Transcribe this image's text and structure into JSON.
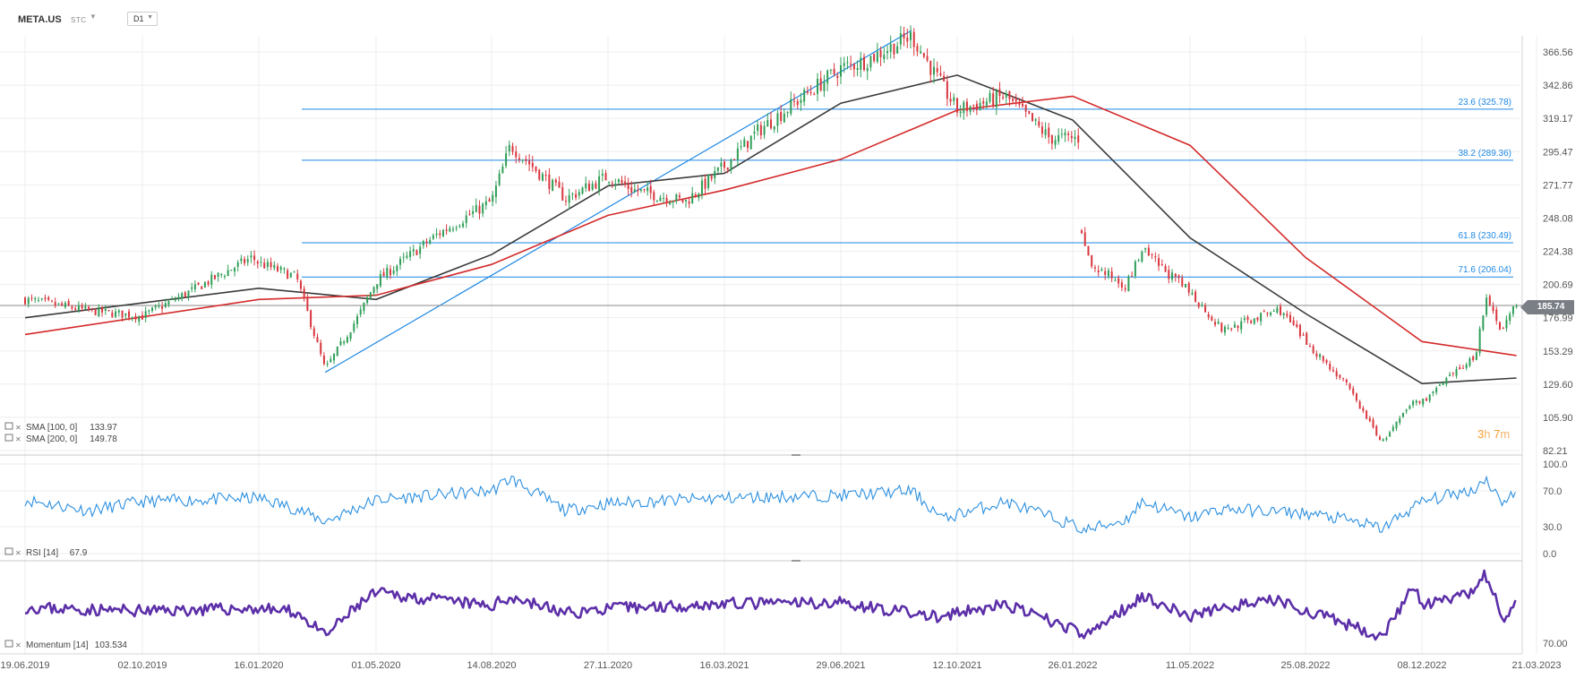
{
  "header": {
    "symbol": "META.US",
    "market": "STC",
    "timeframe": "D1"
  },
  "last_price_badge": "185.74",
  "countdown": {
    "hours": "3",
    "hours_unit": "h",
    "minutes": "7",
    "minutes_unit": "m"
  },
  "colors": {
    "bull": "#2e9e57",
    "bear": "#d9363e",
    "sma100": "#3a3a3a",
    "sma200": "#d42a2a",
    "fib": "#1e88e5",
    "rsi": "#2b8fe0",
    "momentum": "#5c2fa8",
    "price_line": "#7a7f86"
  },
  "chart_data": [
    {
      "type": "candlestick",
      "symbol": "META.US",
      "timeframe": "D1",
      "x_tick_labels": [
        "19.06.2019",
        "02.10.2019",
        "16.01.2020",
        "01.05.2020",
        "14.08.2020",
        "27.11.2020",
        "16.03.2021",
        "29.06.2021",
        "12.10.2021",
        "26.01.2022",
        "11.05.2022",
        "25.08.2022",
        "08.12.2022",
        "21.03.2023"
      ],
      "y_tick_labels": [
        "366.56",
        "342.86",
        "319.17",
        "295.47",
        "271.77",
        "248.08",
        "224.38",
        "200.69",
        "176.99",
        "153.29",
        "129.60",
        "105.90",
        "82.21"
      ],
      "ylim": [
        82.21,
        366.56
      ],
      "last_price": 185.74,
      "price_path": [
        [
          "19.06.2019",
          190
        ],
        [
          "15.08.2019",
          182
        ],
        [
          "02.10.2019",
          178
        ],
        [
          "15.11.2019",
          196
        ],
        [
          "10.01.2020",
          220
        ],
        [
          "16.01.2020",
          216
        ],
        [
          "19.02.2020",
          206
        ],
        [
          "16.03.2020",
          140
        ],
        [
          "15.04.2020",
          178
        ],
        [
          "01.05.2020",
          203
        ],
        [
          "25.06.2020",
          236
        ],
        [
          "14.08.2020",
          260
        ],
        [
          "31.08.2020",
          300
        ],
        [
          "20.10.2020",
          262
        ],
        [
          "27.11.2020",
          278
        ],
        [
          "21.12.2020",
          268
        ],
        [
          "08.02.2021",
          260
        ],
        [
          "16.03.2021",
          285
        ],
        [
          "15.04.2021",
          310
        ],
        [
          "29.06.2021",
          355
        ],
        [
          "20.07.2021",
          360
        ],
        [
          "01.09.2021",
          378
        ],
        [
          "30.09.2021",
          340
        ],
        [
          "12.10.2021",
          325
        ],
        [
          "25.11.2021",
          335
        ],
        [
          "05.01.2022",
          305
        ],
        [
          "31.01.2022",
          305
        ],
        [
          "03.02.2022",
          240
        ],
        [
          "10.02.2022",
          215
        ],
        [
          "15.03.2022",
          200
        ],
        [
          "29.03.2022",
          225
        ],
        [
          "11.05.2022",
          195
        ],
        [
          "10.06.2022",
          168
        ],
        [
          "01.08.2022",
          183
        ],
        [
          "25.08.2022",
          160
        ],
        [
          "30.09.2022",
          130
        ],
        [
          "02.11.2022",
          88
        ],
        [
          "01.12.2022",
          118
        ],
        [
          "08.12.2022",
          117
        ],
        [
          "25.01.2023",
          150
        ],
        [
          "03.02.2023",
          190
        ],
        [
          "17.02.2023",
          170
        ],
        [
          "22.02.2023",
          175
        ],
        [
          "03.03.2023",
          185.74
        ]
      ],
      "sma": [
        {
          "name": "SMA [100, 0]",
          "value": 133.97,
          "color": "#3a3a3a",
          "path": [
            [
              "19.06.2019",
              177
            ],
            [
              "16.01.2020",
              198
            ],
            [
              "01.05.2020",
              190
            ],
            [
              "14.08.2020",
              222
            ],
            [
              "27.11.2020",
              271
            ],
            [
              "16.03.2021",
              280
            ],
            [
              "29.06.2021",
              330
            ],
            [
              "12.10.2021",
              350
            ],
            [
              "26.01.2022",
              318
            ],
            [
              "11.05.2022",
              234
            ],
            [
              "25.08.2022",
              180
            ],
            [
              "08.12.2022",
              130
            ],
            [
              "03.03.2023",
              134
            ]
          ]
        },
        {
          "name": "SMA [200, 0]",
          "value": 149.78,
          "color": "#d42a2a",
          "path": [
            [
              "19.06.2019",
              165
            ],
            [
              "16.01.2020",
              190
            ],
            [
              "01.05.2020",
              193
            ],
            [
              "14.08.2020",
              215
            ],
            [
              "27.11.2020",
              250
            ],
            [
              "16.03.2021",
              268
            ],
            [
              "29.06.2021",
              290
            ],
            [
              "12.10.2021",
              325
            ],
            [
              "26.01.2022",
              335
            ],
            [
              "11.05.2022",
              300
            ],
            [
              "25.08.2022",
              220
            ],
            [
              "08.12.2022",
              160
            ],
            [
              "03.03.2023",
              150
            ]
          ]
        }
      ],
      "fibonacci": [
        {
          "label": "23.6 (325.78)",
          "level": 325.78
        },
        {
          "label": "38.2 (289.36)",
          "level": 289.36
        },
        {
          "label": "61.8 (230.49)",
          "level": 230.49
        },
        {
          "label": "71.6 (206.04)",
          "level": 206.04
        }
      ],
      "trendline": {
        "from": [
          "16.03.2020",
          138
        ],
        "to": [
          "01.09.2021",
          382
        ]
      }
    },
    {
      "type": "line",
      "name": "RSI [14]",
      "value": 67.9,
      "y_tick_labels": [
        "100.0",
        "70.0",
        "30.0",
        "0.0"
      ],
      "ylim": [
        0,
        100
      ],
      "path": [
        [
          "19.06.2019",
          60
        ],
        [
          "15.08.2019",
          48
        ],
        [
          "02.10.2019",
          58
        ],
        [
          "16.01.2020",
          62
        ],
        [
          "19.02.2020",
          50
        ],
        [
          "16.03.2020",
          36
        ],
        [
          "01.05.2020",
          60
        ],
        [
          "14.08.2020",
          70
        ],
        [
          "31.08.2020",
          84
        ],
        [
          "20.10.2020",
          48
        ],
        [
          "27.11.2020",
          56
        ],
        [
          "16.03.2021",
          62
        ],
        [
          "29.06.2021",
          65
        ],
        [
          "01.09.2021",
          70
        ],
        [
          "30.09.2021",
          38
        ],
        [
          "12.10.2021",
          44
        ],
        [
          "25.11.2021",
          58
        ],
        [
          "31.01.2022",
          30
        ],
        [
          "03.02.2022",
          25
        ],
        [
          "15.03.2022",
          38
        ],
        [
          "29.03.2022",
          58
        ],
        [
          "11.05.2022",
          40
        ],
        [
          "10.06.2022",
          50
        ],
        [
          "25.08.2022",
          45
        ],
        [
          "30.09.2022",
          38
        ],
        [
          "02.11.2022",
          28
        ],
        [
          "08.12.2022",
          58
        ],
        [
          "25.01.2023",
          72
        ],
        [
          "03.02.2023",
          85
        ],
        [
          "17.02.2023",
          58
        ],
        [
          "03.03.2023",
          67.9
        ]
      ]
    },
    {
      "type": "line",
      "name": "Momentum [14]",
      "value": 103.534,
      "y_tick_labels": [
        "70.00"
      ],
      "path": [
        [
          "19.06.2019",
          100
        ],
        [
          "15.08.2019",
          98
        ],
        [
          "02.10.2019",
          97
        ],
        [
          "16.01.2020",
          99
        ],
        [
          "19.02.2020",
          96
        ],
        [
          "16.03.2020",
          76
        ],
        [
          "15.04.2020",
          102
        ],
        [
          "01.05.2020",
          112
        ],
        [
          "14.08.2020",
          101
        ],
        [
          "31.08.2020",
          109
        ],
        [
          "20.10.2020",
          95
        ],
        [
          "27.11.2020",
          99
        ],
        [
          "16.03.2021",
          103
        ],
        [
          "29.06.2021",
          104
        ],
        [
          "30.09.2021",
          91
        ],
        [
          "12.10.2021",
          95
        ],
        [
          "25.11.2021",
          102
        ],
        [
          "31.01.2022",
          80
        ],
        [
          "03.02.2022",
          74
        ],
        [
          "15.03.2022",
          100
        ],
        [
          "29.03.2022",
          110
        ],
        [
          "11.05.2022",
          92
        ],
        [
          "10.06.2022",
          100
        ],
        [
          "01.08.2022",
          106
        ],
        [
          "25.08.2022",
          97
        ],
        [
          "30.09.2022",
          86
        ],
        [
          "02.11.2022",
          76
        ],
        [
          "01.12.2022",
          118
        ],
        [
          "08.12.2022",
          101
        ],
        [
          "25.01.2023",
          112
        ],
        [
          "03.02.2023",
          128
        ],
        [
          "17.02.2023",
          95
        ],
        [
          "22.02.2023",
          90
        ],
        [
          "03.03.2023",
          103.534
        ]
      ]
    }
  ]
}
